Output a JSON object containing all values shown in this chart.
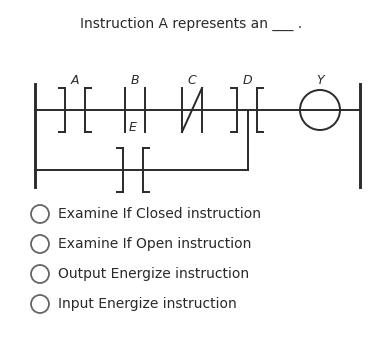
{
  "title": "Instruction A represents an ___ .",
  "bg_color": "#ffffff",
  "text_color": "#2a2a2a",
  "options": [
    "Examine If Closed instruction",
    "Examine If Open instruction",
    "Output Energize instruction",
    "Input Energize instruction"
  ],
  "lw": 1.4
}
